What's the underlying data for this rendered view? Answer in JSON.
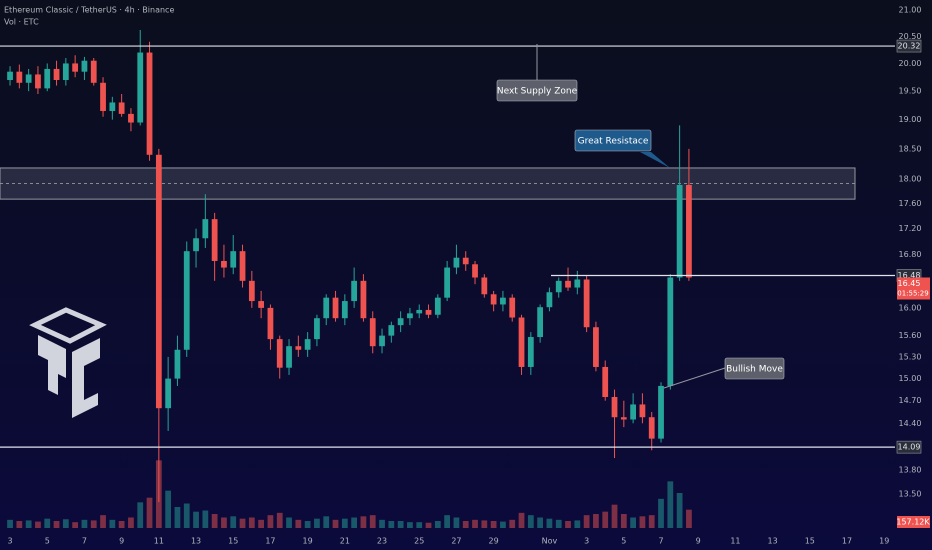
{
  "chart_data": {
    "type": "candlestick",
    "title": "Ethereum Classic / TetherUS · 4h · Binance",
    "subtitle": "Vol · ETC",
    "log_scale": true,
    "up_color": "#26a69a",
    "down_color": "#ef5350",
    "x": [
      3,
      3.5,
      4,
      4.5,
      5,
      5.5,
      6,
      6.5,
      7,
      7.5,
      8,
      8.5,
      9,
      9.5,
      10,
      10.5,
      11,
      11.5,
      12,
      12.5,
      13,
      13.5,
      14,
      14.5,
      15,
      15.5,
      16,
      16.5,
      17,
      17.5,
      18,
      18.5,
      19,
      19.5,
      20,
      20.5,
      21,
      21.5,
      22,
      22.5,
      23,
      23.5,
      24,
      24.5,
      25,
      25.5,
      26,
      26.5,
      27,
      27.5,
      28,
      28.5,
      29,
      29.5,
      30,
      30.5,
      31,
      31.5,
      32,
      32.5,
      33,
      33.5,
      34,
      34.5,
      35,
      35.5,
      36,
      36.5,
      37,
      37.5,
      38,
      38.5,
      39,
      39.5
    ],
    "open": [
      19.7,
      19.85,
      19.65,
      19.8,
      19.55,
      19.9,
      19.7,
      20.0,
      19.85,
      20.05,
      19.65,
      19.15,
      19.3,
      19.1,
      18.95,
      20.2,
      18.4,
      14.6,
      15.0,
      15.4,
      16.85,
      17.05,
      17.35,
      16.7,
      16.6,
      16.85,
      16.4,
      16.1,
      16.0,
      15.55,
      15.15,
      15.45,
      15.4,
      15.55,
      15.85,
      16.15,
      15.85,
      16.1,
      16.4,
      15.85,
      15.45,
      15.6,
      15.75,
      15.85,
      15.92,
      15.97,
      15.9,
      16.15,
      16.6,
      16.75,
      16.65,
      16.45,
      16.2,
      16.05,
      16.15,
      15.86,
      15.16,
      15.58,
      16.01,
      16.23,
      16.4,
      16.3,
      16.42,
      15.72,
      15.16,
      14.75,
      14.48,
      14.45,
      14.65,
      14.48,
      14.2,
      14.9,
      16.45,
      17.9
    ],
    "high": [
      19.95,
      19.98,
      19.9,
      19.95,
      20.0,
      20.05,
      20.1,
      20.15,
      20.12,
      20.1,
      19.75,
      19.4,
      19.45,
      19.2,
      20.62,
      20.4,
      18.5,
      15.3,
      15.6,
      17.0,
      17.2,
      17.75,
      17.45,
      16.95,
      17.1,
      16.95,
      16.55,
      16.25,
      16.05,
      15.6,
      15.55,
      15.6,
      15.65,
      15.9,
      16.2,
      16.25,
      16.2,
      16.6,
      16.5,
      15.95,
      15.7,
      15.8,
      15.95,
      16.0,
      16.05,
      16.05,
      16.2,
      16.7,
      16.95,
      16.85,
      16.7,
      16.5,
      16.25,
      16.25,
      16.2,
      15.9,
      15.65,
      16.05,
      16.3,
      16.45,
      16.6,
      16.55,
      16.48,
      15.8,
      15.25,
      14.85,
      14.7,
      14.8,
      14.8,
      14.55,
      14.95,
      16.5,
      18.9,
      18.5
    ],
    "low": [
      19.6,
      19.55,
      19.5,
      19.45,
      19.5,
      19.6,
      19.6,
      19.75,
      19.7,
      19.6,
      19.05,
      19.0,
      19.05,
      18.8,
      18.9,
      18.3,
      13.4,
      14.3,
      14.9,
      15.3,
      16.6,
      16.9,
      16.4,
      16.45,
      16.5,
      16.3,
      16.0,
      15.85,
      15.4,
      15.0,
      15.05,
      15.3,
      15.3,
      15.45,
      15.75,
      15.8,
      15.75,
      16.0,
      15.8,
      15.35,
      15.35,
      15.5,
      15.65,
      15.75,
      15.85,
      15.85,
      15.85,
      16.1,
      16.5,
      16.55,
      16.35,
      16.15,
      15.95,
      15.95,
      15.8,
      15.05,
      15.05,
      15.5,
      15.95,
      16.15,
      16.25,
      16.2,
      15.65,
      15.1,
      14.7,
      13.95,
      14.35,
      14.4,
      14.4,
      14.05,
      14.15,
      14.85,
      16.4,
      16.4
    ],
    "close": [
      19.85,
      19.65,
      19.8,
      19.55,
      19.9,
      19.7,
      20.0,
      19.85,
      20.05,
      19.65,
      19.15,
      19.3,
      19.1,
      18.95,
      20.2,
      18.4,
      14.6,
      15.0,
      15.4,
      16.85,
      17.05,
      17.35,
      16.7,
      16.6,
      16.85,
      16.4,
      16.1,
      16.0,
      15.55,
      15.15,
      15.45,
      15.4,
      15.55,
      15.85,
      16.15,
      15.85,
      16.1,
      16.4,
      15.85,
      15.45,
      15.6,
      15.75,
      15.85,
      15.92,
      15.97,
      15.9,
      16.15,
      16.6,
      16.75,
      16.65,
      16.45,
      16.2,
      16.05,
      16.15,
      15.86,
      15.16,
      15.58,
      16.01,
      16.23,
      16.4,
      16.3,
      16.42,
      15.72,
      15.16,
      14.75,
      14.48,
      14.45,
      14.65,
      14.48,
      14.2,
      14.9,
      16.45,
      17.9,
      16.45
    ],
    "volume": [
      70000,
      60000,
      65000,
      55000,
      80000,
      60000,
      75000,
      50000,
      70000,
      65000,
      110000,
      70000,
      60000,
      90000,
      220000,
      260000,
      580000,
      320000,
      180000,
      210000,
      140000,
      150000,
      120000,
      90000,
      100000,
      80000,
      90000,
      70000,
      110000,
      130000,
      90000,
      70000,
      60000,
      80000,
      100000,
      70000,
      80000,
      90000,
      100000,
      110000,
      70000,
      60000,
      60000,
      50000,
      50000,
      45000,
      60000,
      110000,
      90000,
      60000,
      70000,
      65000,
      60000,
      55000,
      70000,
      130000,
      110000,
      90000,
      80000,
      70000,
      60000,
      65000,
      110000,
      120000,
      140000,
      200000,
      120000,
      90000,
      100000,
      110000,
      250000,
      400000,
      300000,
      157120
    ],
    "volume_lim": [
      0,
      600000
    ],
    "volume_last_label": "157.12K",
    "xlim": [
      2.46,
      50.58
    ],
    "xticks": [
      3,
      5,
      7,
      9,
      11,
      13,
      15,
      17,
      19,
      21,
      23,
      25,
      27,
      29,
      {
        "value": 32,
        "label": "Nov"
      },
      {
        "value": 34,
        "label": "3"
      },
      {
        "value": 36,
        "label": "5"
      },
      {
        "value": 38,
        "label": "7"
      },
      {
        "value": 40,
        "label": "9"
      },
      {
        "value": 42,
        "label": "11"
      },
      {
        "value": 44,
        "label": "13"
      },
      {
        "value": 46,
        "label": "15"
      },
      {
        "value": 48,
        "label": "17"
      },
      {
        "value": 50,
        "label": "19"
      }
    ],
    "ylim": [
      13.5,
      21
    ],
    "yticks": [
      {
        "value": 21,
        "label": "21.00"
      },
      {
        "value": 20.5,
        "label": "20.50"
      },
      {
        "value": 20,
        "label": "20.00"
      },
      {
        "value": 19.5,
        "label": "19.50"
      },
      {
        "value": 19,
        "label": "19.00"
      },
      {
        "value": 18.5,
        "label": "18.50"
      },
      {
        "value": 18,
        "label": "18.00"
      },
      {
        "value": 17.6,
        "label": "17.60"
      },
      {
        "value": 17.2,
        "label": "17.20"
      },
      {
        "value": 16.8,
        "label": "16.80"
      },
      {
        "value": 16,
        "label": "16.00"
      },
      {
        "value": 15.6,
        "label": "15.60"
      },
      {
        "value": 15.3,
        "label": "15.30"
      },
      {
        "value": 15,
        "label": "15.00"
      },
      {
        "value": 14.7,
        "label": "14.70"
      },
      {
        "value": 14.4,
        "label": "14.40"
      },
      {
        "value": 13.8,
        "label": "13.80"
      },
      {
        "value": 13.5,
        "label": "13.50"
      }
    ],
    "levels": [
      {
        "value": 20.32,
        "label": "20.32"
      },
      {
        "value": 16.48,
        "label": "16.48"
      },
      {
        "value": 14.09,
        "label": "14.09"
      }
    ],
    "last_price": {
      "value": 16.45,
      "label": "16.45"
    },
    "countdown": "01:55:29",
    "zone": [
      17.67,
      18.18
    ],
    "annotations": [
      {
        "text": "Next Supply Zone"
      },
      {
        "text": "Great Resistace"
      },
      {
        "text": "Bullish Move"
      }
    ]
  }
}
